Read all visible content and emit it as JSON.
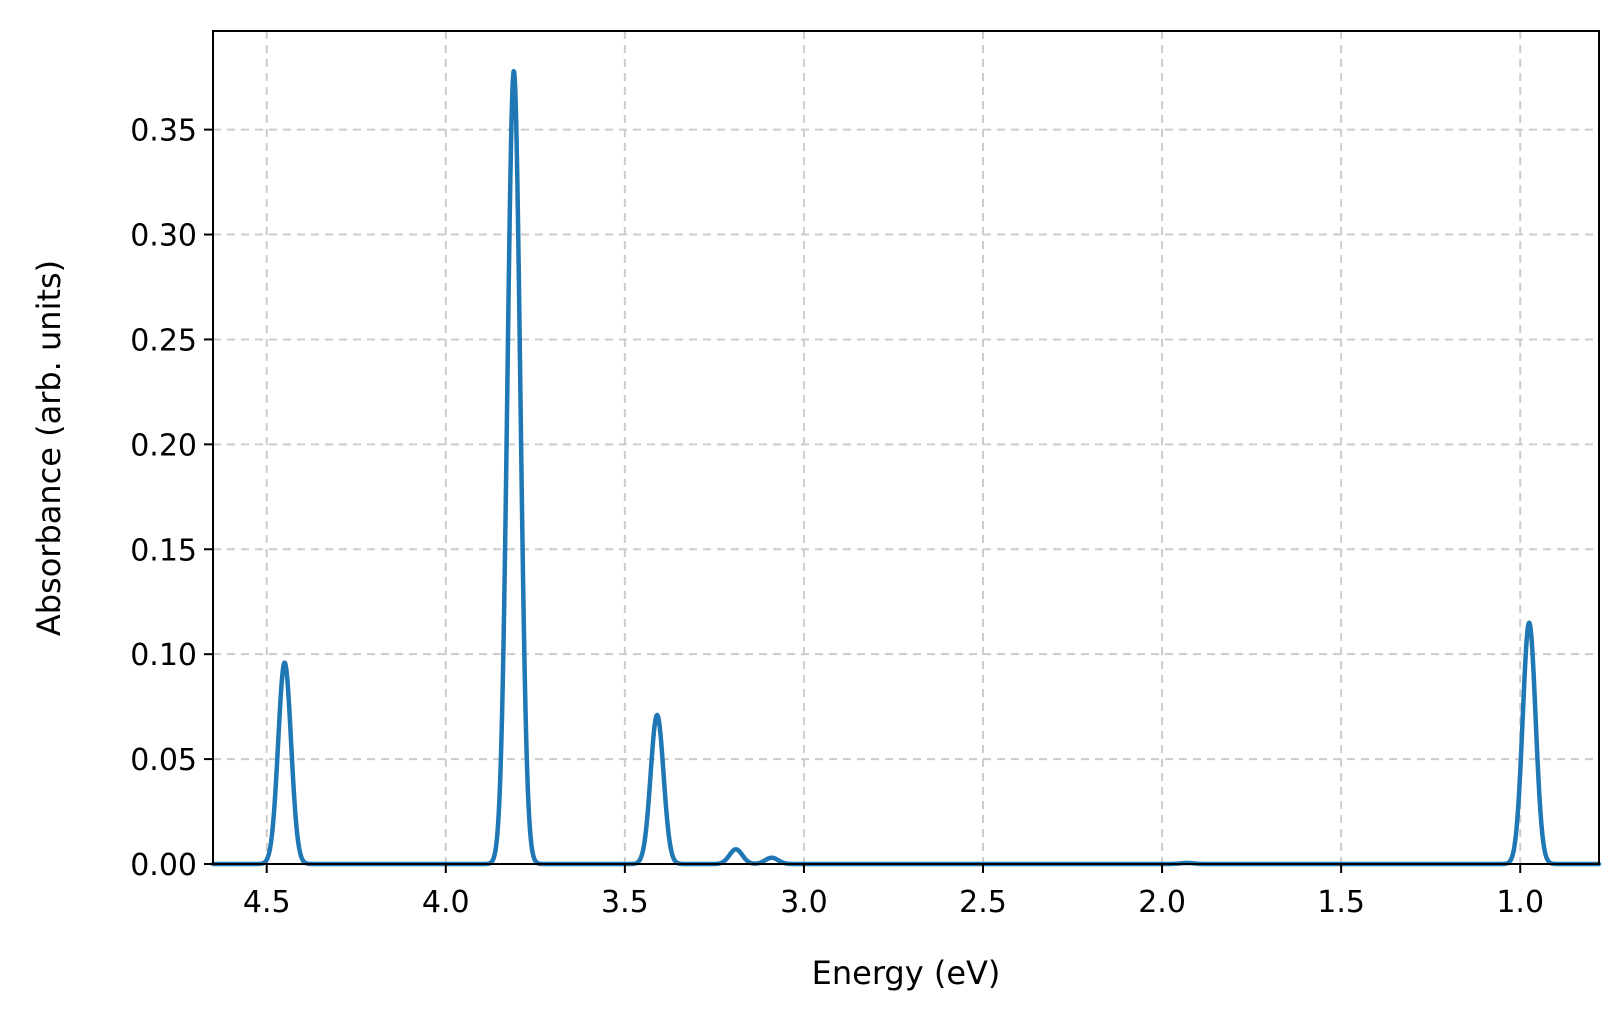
{
  "chart_data": {
    "type": "line",
    "title": "",
    "xlabel": "Energy (eV)",
    "ylabel": "Absorbance (arb. units)",
    "xlim": [
      4.65,
      0.78
    ],
    "ylim": [
      0,
      0.397
    ],
    "x_inverted": true,
    "grid": true,
    "xticks": [
      4.5,
      4.0,
      3.5,
      3.0,
      2.5,
      2.0,
      1.5,
      1.0
    ],
    "xtick_labels": [
      "4.5",
      "4.0",
      "3.5",
      "3.0",
      "2.5",
      "2.0",
      "1.5",
      "1.0"
    ],
    "yticks": [
      0.0,
      0.05,
      0.1,
      0.15,
      0.2,
      0.25,
      0.3,
      0.35
    ],
    "ytick_labels": [
      "0.00",
      "0.05",
      "0.10",
      "0.15",
      "0.20",
      "0.25",
      "0.30",
      "0.35"
    ],
    "series": [
      {
        "color": "#1f77b4",
        "peaks": [
          {
            "center": 4.45,
            "height": 0.096
          },
          {
            "center": 3.81,
            "height": 0.378
          },
          {
            "center": 3.41,
            "height": 0.071
          },
          {
            "center": 3.19,
            "height": 0.007
          },
          {
            "center": 3.09,
            "height": 0.003
          },
          {
            "center": 1.93,
            "height": 0.0005
          },
          {
            "center": 0.975,
            "height": 0.115
          }
        ],
        "peak_sigma": 0.018
      }
    ]
  }
}
